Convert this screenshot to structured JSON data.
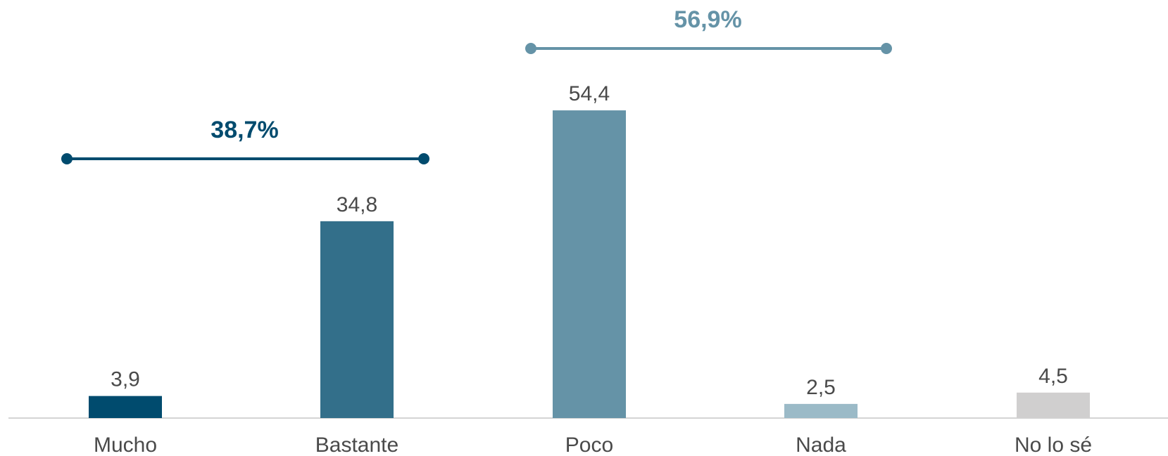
{
  "chart_data": {
    "type": "bar",
    "categories": [
      "Mucho",
      "Bastante",
      "Poco",
      "Nada",
      "No lo sé"
    ],
    "values": [
      3.9,
      34.8,
      54.4,
      2.5,
      4.5
    ],
    "value_labels": [
      "3,9",
      "34,8",
      "54,4",
      "2,5",
      "4,5"
    ],
    "colors": [
      "#004b6e",
      "#336f8a",
      "#6593a7",
      "#9bbac7",
      "#d0cfcf"
    ],
    "ylim": [
      0,
      60
    ],
    "grid": false,
    "title": "",
    "xlabel": "",
    "ylabel": "",
    "annotations": [
      {
        "label": "38,7%",
        "value": 38.7,
        "spans": [
          "Mucho",
          "Bastante"
        ],
        "color": "#004b6e"
      },
      {
        "label": "56,9%",
        "value": 56.9,
        "spans": [
          "Poco",
          "Nada"
        ],
        "color": "#6593a7"
      }
    ]
  }
}
